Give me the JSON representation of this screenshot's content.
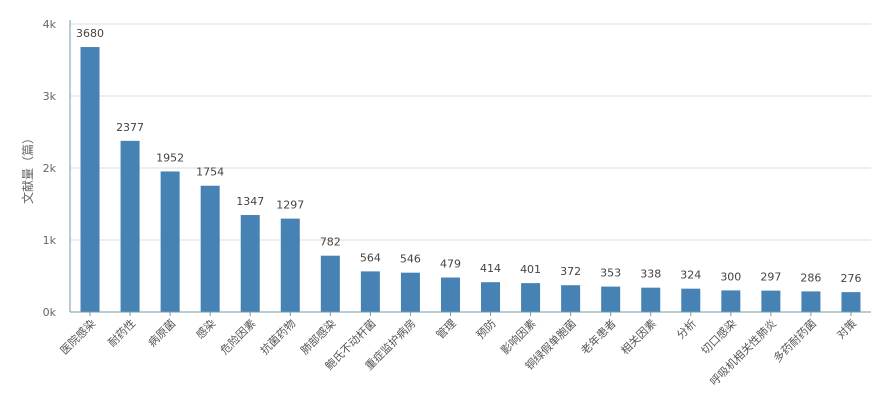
{
  "chart_data": {
    "type": "bar",
    "ylabel": "文献量（篇）",
    "ylim": [
      0,
      4000
    ],
    "yticks": [
      {
        "value": 0,
        "label": "0k"
      },
      {
        "value": 1000,
        "label": "1k"
      },
      {
        "value": 2000,
        "label": "2k"
      },
      {
        "value": 3000,
        "label": "3k"
      },
      {
        "value": 4000,
        "label": "4k"
      }
    ],
    "categories": [
      "医院感染",
      "耐药性",
      "病原菌",
      "感染",
      "危险因素",
      "抗菌药物",
      "肺部感染",
      "鲍氏不动杆菌",
      "重症监护病房",
      "管理",
      "预防",
      "影响因素",
      "铜绿假单胞菌",
      "老年患者",
      "相关因素",
      "分析",
      "切口感染",
      "呼吸机相关性肺炎",
      "多药耐药菌",
      "对策"
    ],
    "values": [
      3680,
      2377,
      1952,
      1754,
      1347,
      1297,
      782,
      564,
      546,
      479,
      414,
      401,
      372,
      353,
      338,
      324,
      300,
      297,
      286,
      276
    ],
    "bar_color": "#4682b4",
    "grid": true
  }
}
